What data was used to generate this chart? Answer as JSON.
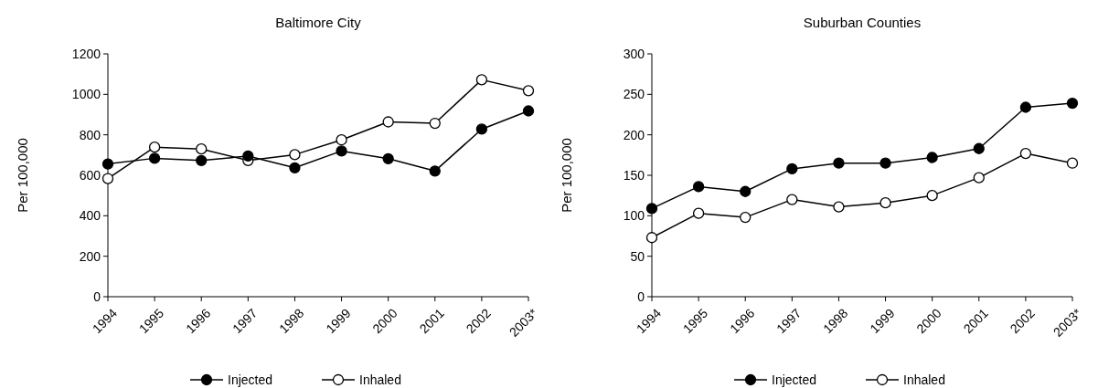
{
  "chart_data": [
    {
      "type": "line",
      "title": "Baltimore City",
      "ylabel": "Per 100,000",
      "categories": [
        "1994",
        "1995",
        "1996",
        "1997",
        "1998",
        "1999",
        "2000",
        "2001",
        "2002",
        "2003*"
      ],
      "ylim": [
        0,
        1200
      ],
      "yticks": [
        0,
        200,
        400,
        600,
        800,
        1000,
        1200
      ],
      "legend": "bottom",
      "marker": "circle",
      "grid": false,
      "series": [
        {
          "name": "Injected",
          "color": "#000000",
          "values": [
            656,
            684,
            673,
            695,
            637,
            720,
            682,
            621,
            828,
            918
          ]
        },
        {
          "name": "Inhaled",
          "color": "#ffffff",
          "values": [
            584,
            739,
            730,
            673,
            702,
            775,
            864,
            857,
            1072,
            1018
          ]
        }
      ]
    },
    {
      "type": "line",
      "title": "Suburban Counties",
      "ylabel": "Per 100,000",
      "categories": [
        "1994",
        "1995",
        "1996",
        "1997",
        "1998",
        "1999",
        "2000",
        "2001",
        "2002",
        "2003*"
      ],
      "ylim": [
        0,
        300
      ],
      "yticks": [
        0,
        50,
        100,
        150,
        200,
        250,
        300
      ],
      "legend": "bottom",
      "marker": "circle",
      "grid": false,
      "series": [
        {
          "name": "Injected",
          "color": "#000000",
          "values": [
            109,
            136,
            130,
            158,
            165,
            165,
            172,
            183,
            234,
            239
          ]
        },
        {
          "name": "Inhaled",
          "color": "#ffffff",
          "values": [
            73,
            103,
            98,
            120,
            111,
            116,
            125,
            147,
            177,
            165
          ]
        }
      ]
    }
  ]
}
